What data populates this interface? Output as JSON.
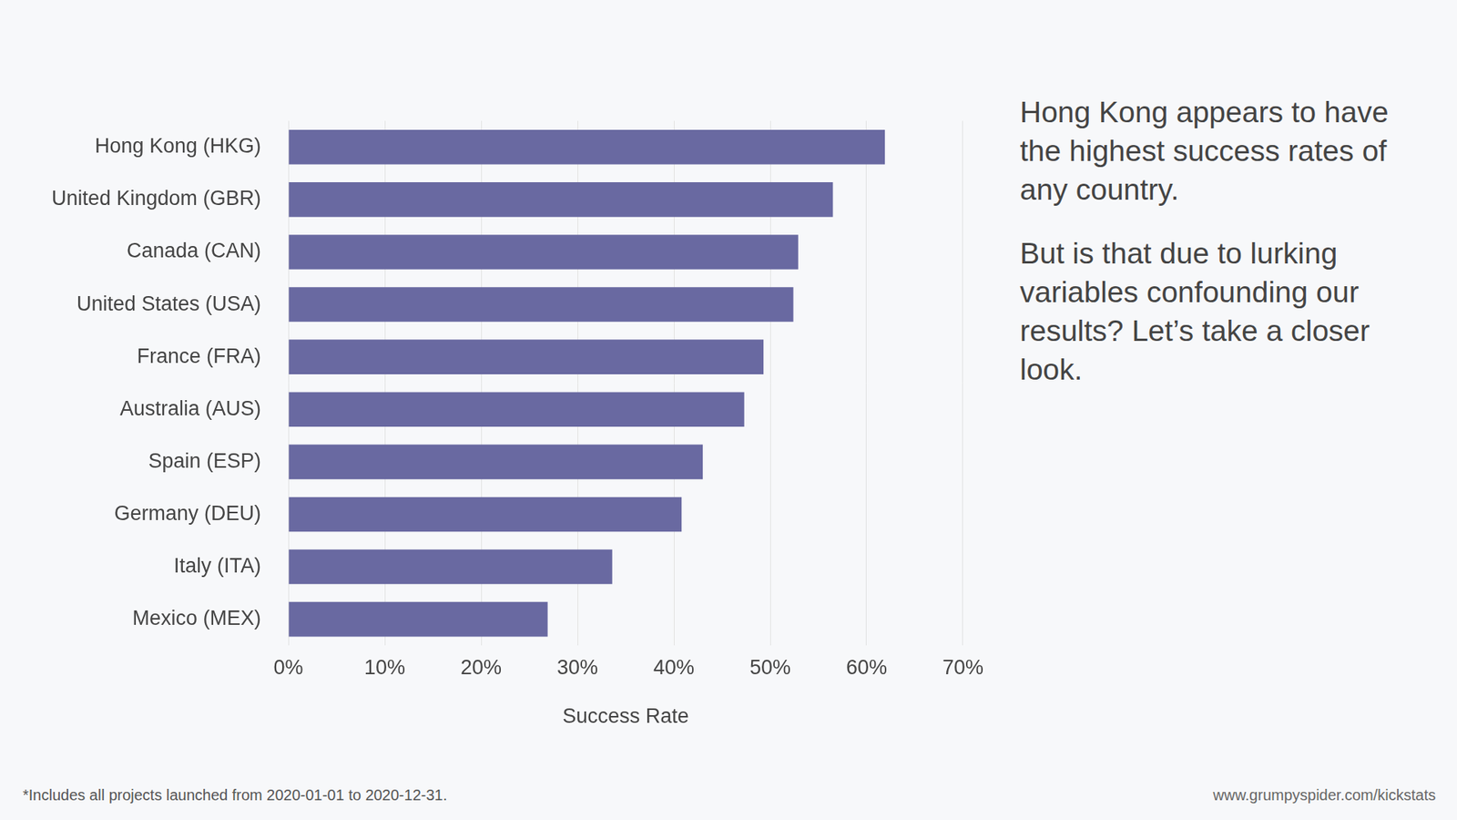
{
  "chart_data": {
    "type": "bar",
    "orientation": "horizontal",
    "categories": [
      "Hong Kong (HKG)",
      "United Kingdom (GBR)",
      "Canada (CAN)",
      "United States (USA)",
      "France (FRA)",
      "Australia (AUS)",
      "Spain (ESP)",
      "Germany (DEU)",
      "Italy (ITA)",
      "Mexico (MEX)"
    ],
    "values": [
      61.9,
      56.5,
      52.9,
      52.4,
      49.3,
      47.3,
      43.0,
      40.8,
      33.6,
      26.9
    ],
    "color": "#6969a1",
    "x_label": "Success Rate",
    "xlim": [
      0,
      70
    ],
    "xticks": [
      {
        "value": 0,
        "label": "0%"
      },
      {
        "value": 10,
        "label": "10%"
      },
      {
        "value": 20,
        "label": "20%"
      },
      {
        "value": 30,
        "label": "30%"
      },
      {
        "value": 40,
        "label": "40%"
      },
      {
        "value": 50,
        "label": "50%"
      },
      {
        "value": 60,
        "label": "60%"
      },
      {
        "value": 70,
        "label": "70%"
      }
    ],
    "grid": true,
    "annotations": [
      "Hong Kong appears to have the highest success rates of any country.",
      "But is that due to lurking variables confounding our results? Let’s take a closer look."
    ],
    "footnote": "*Includes all projects launched from 2020-01-01 to 2020-12-31.",
    "source": "www.grumpyspider.com/kickstats"
  }
}
